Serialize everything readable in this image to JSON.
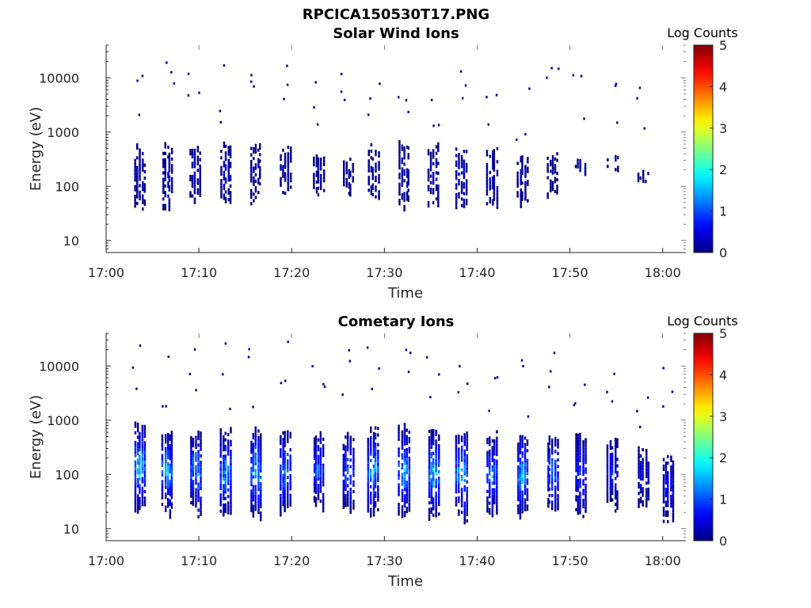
{
  "figure": {
    "title": "RPCICA150530T17.PNG"
  },
  "chart_data": [
    {
      "type": "heatmap",
      "title": "Solar Wind Ions",
      "xlabel": "Time",
      "ylabel": "Energy (eV)",
      "colorbar_label": "Log Counts",
      "x_ticks": [
        "17:00",
        "17:10",
        "17:20",
        "17:30",
        "17:40",
        "17:50",
        "18:00"
      ],
      "x_range_minutes": [
        0,
        62.5
      ],
      "y_ticks": [
        "10",
        "100",
        "1000",
        "10000"
      ],
      "y_scale": "log",
      "y_range": [
        6,
        40000
      ],
      "colorbar_ticks": [
        "0",
        "1",
        "2",
        "3",
        "4",
        "5"
      ],
      "colorbar_range": [
        0,
        5
      ],
      "colormap": "jet",
      "grid": false,
      "bursts_minute": [
        3.5,
        6.5,
        9.5,
        12.8,
        16,
        19.2,
        22.8,
        26,
        28.7,
        32,
        35.2,
        38.2,
        41.5,
        44.8,
        48,
        51,
        54.5,
        57.8
      ],
      "burst_energy_low_eV": [
        45,
        40,
        55,
        45,
        50,
        60,
        70,
        80,
        60,
        45,
        50,
        40,
        45,
        50,
        60,
        200,
        220,
        100
      ],
      "burst_energy_high_eV": [
        450,
        500,
        400,
        500,
        500,
        450,
        400,
        350,
        500,
        500,
        500,
        450,
        400,
        300,
        350,
        250,
        300,
        150
      ],
      "burst_peak_log_counts": [
        0.3,
        0.3,
        0.3,
        0.3,
        0.3,
        0.3,
        0.2,
        0.2,
        0.3,
        0.3,
        0.3,
        0.4,
        0.3,
        0.3,
        0.2,
        0.2,
        0.2,
        0.1
      ]
    },
    {
      "type": "heatmap",
      "title": "Cometary Ions",
      "xlabel": "Time",
      "ylabel": "Energy (eV)",
      "colorbar_label": "Log Counts",
      "x_ticks": [
        "17:00",
        "17:10",
        "17:20",
        "17:30",
        "17:40",
        "17:50",
        "18:00"
      ],
      "x_range_minutes": [
        0,
        62.5
      ],
      "y_ticks": [
        "10",
        "100",
        "1000",
        "10000"
      ],
      "y_scale": "log",
      "y_range": [
        6,
        40000
      ],
      "colorbar_ticks": [
        "0",
        "1",
        "2",
        "3",
        "4",
        "5"
      ],
      "colorbar_range": [
        0,
        5
      ],
      "colormap": "jet",
      "grid": false,
      "bursts_minute": [
        3.5,
        6.5,
        9.5,
        12.8,
        16,
        19.2,
        22.8,
        26,
        28.7,
        32,
        35.2,
        38.2,
        41.5,
        44.8,
        48,
        51,
        54.5,
        57.8,
        60.5
      ],
      "burst_energy_low_eV": [
        20,
        20,
        20,
        15,
        18,
        20,
        25,
        20,
        20,
        20,
        18,
        15,
        20,
        18,
        25,
        20,
        25,
        30,
        15
      ],
      "burst_energy_high_eV": [
        700,
        600,
        500,
        550,
        550,
        600,
        500,
        450,
        600,
        700,
        600,
        500,
        500,
        450,
        450,
        450,
        450,
        250,
        200
      ],
      "burst_peak_log_counts": [
        1.8,
        1.7,
        1.6,
        1.6,
        1.7,
        1.5,
        1.2,
        1.2,
        1.7,
        1.6,
        1.8,
        1.7,
        1.4,
        1.7,
        1.4,
        1.0,
        0.9,
        0.6,
        0.7
      ]
    }
  ]
}
